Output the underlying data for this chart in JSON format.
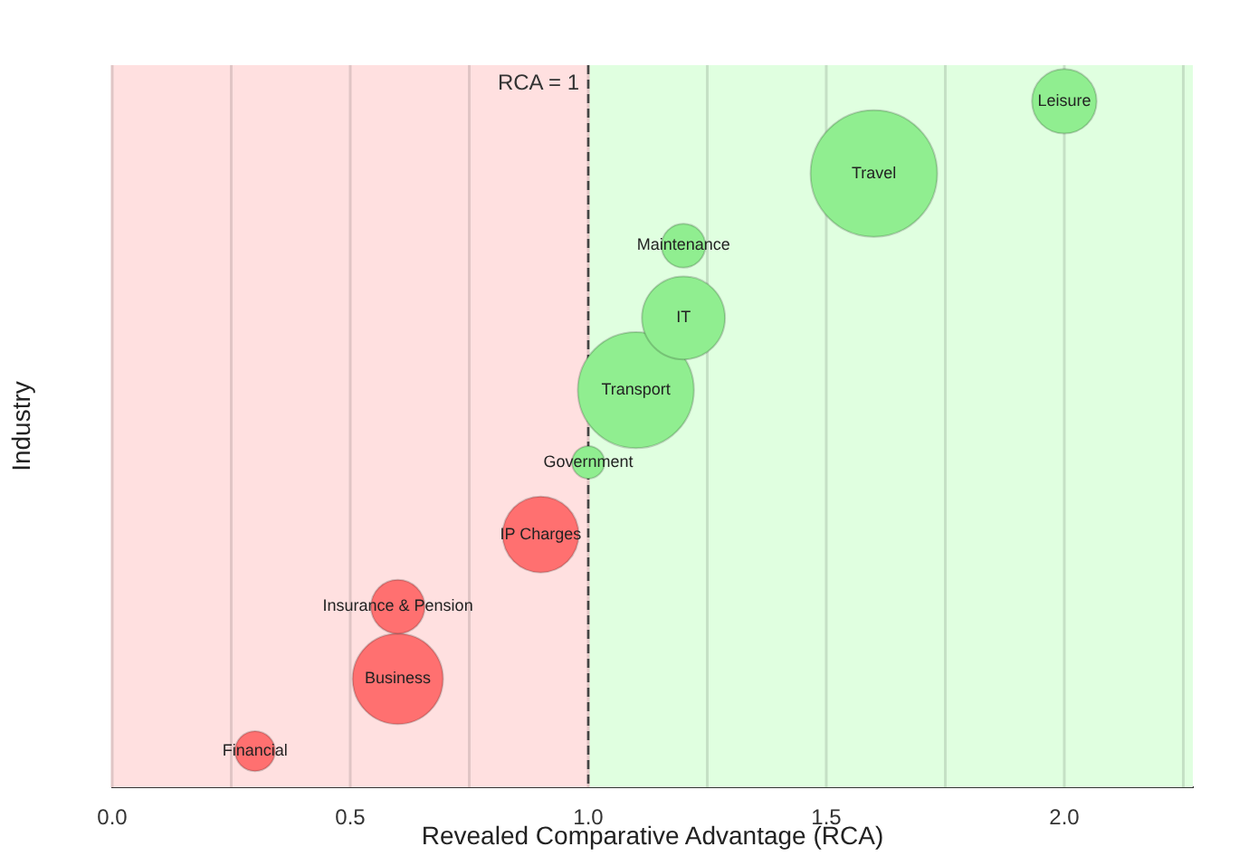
{
  "chart_data": {
    "type": "bubble",
    "orientation": "horizontal",
    "xlabel": "Revealed Comparative Advantage (RCA)",
    "ylabel": "Industry",
    "categories": [
      null,
      null,
      null,
      null,
      null,
      null,
      null,
      null,
      null,
      null
    ],
    "series": [
      {
        "name": "Leisure",
        "color": "#90ee90",
        "values": [
          2.0,
          null,
          null,
          null,
          null,
          null,
          null,
          null,
          null,
          null
        ],
        "sizes": [
          0.26,
          null,
          null,
          null,
          null,
          null,
          null,
          null,
          null,
          null
        ]
      },
      {
        "name": "Travel",
        "color": "#90ee90",
        "values": [
          null,
          1.6,
          null,
          null,
          null,
          null,
          null,
          null,
          null,
          null
        ],
        "sizes": [
          null,
          1,
          null,
          null,
          null,
          null,
          null,
          null,
          null,
          null
        ]
      },
      {
        "name": "Maintenance",
        "color": "#90ee90",
        "values": [
          null,
          null,
          1.2,
          null,
          null,
          null,
          null,
          null,
          null,
          null
        ],
        "sizes": [
          null,
          null,
          0.12,
          null,
          null,
          null,
          null,
          null,
          null,
          null
        ]
      },
      {
        "name": "IT",
        "color": "#90ee90",
        "values": [
          null,
          null,
          null,
          1.2,
          null,
          null,
          null,
          null,
          null,
          null
        ],
        "sizes": [
          null,
          null,
          null,
          0.43,
          null,
          null,
          null,
          null,
          null,
          null
        ]
      },
      {
        "name": "Transport",
        "color": "#90ee90",
        "values": [
          null,
          null,
          null,
          null,
          1.1,
          null,
          null,
          null,
          null,
          null
        ],
        "sizes": [
          null,
          null,
          null,
          null,
          0.84,
          null,
          null,
          null,
          null,
          null
        ]
      },
      {
        "name": "Government",
        "color": "#90ee90",
        "values": [
          null,
          null,
          null,
          null,
          null,
          1.0,
          null,
          null,
          null,
          null
        ],
        "sizes": [
          null,
          null,
          null,
          null,
          null,
          0.066,
          null,
          null,
          null,
          null
        ]
      },
      {
        "name": "IP Charges",
        "color": "#ff7070",
        "values": [
          null,
          null,
          null,
          null,
          null,
          null,
          0.9,
          null,
          null,
          null
        ],
        "sizes": [
          null,
          null,
          null,
          null,
          null,
          null,
          0.36,
          null,
          null,
          null
        ]
      },
      {
        "name": "Insurance & Pension",
        "color": "#ff7070",
        "values": [
          null,
          null,
          null,
          null,
          null,
          null,
          null,
          0.6,
          null,
          null
        ],
        "sizes": [
          null,
          null,
          null,
          null,
          null,
          null,
          null,
          0.18,
          null,
          null
        ]
      },
      {
        "name": "Business",
        "color": "#ff7070",
        "values": [
          null,
          null,
          null,
          null,
          null,
          null,
          null,
          null,
          0.6,
          null
        ],
        "sizes": [
          null,
          null,
          null,
          null,
          null,
          null,
          null,
          null,
          0.51,
          null
        ]
      },
      {
        "name": "Financial",
        "color": "#ff7070",
        "values": [
          null,
          null,
          null,
          null,
          null,
          null,
          null,
          null,
          null,
          0.3
        ],
        "sizes": [
          null,
          null,
          null,
          null,
          null,
          null,
          null,
          null,
          null,
          0.1
        ]
      }
    ],
    "xlim": [
      0,
      2.27
    ],
    "xticks": [
      {
        "value": 0,
        "label": "0.0"
      },
      {
        "value": 0.25,
        "label": null
      },
      {
        "value": 0.5,
        "label": "0.5"
      },
      {
        "value": 0.75,
        "label": null
      },
      {
        "value": 1,
        "label": "1.0"
      },
      {
        "value": 1.25,
        "label": null
      },
      {
        "value": 1.5,
        "label": "1.5"
      },
      {
        "value": 1.75,
        "label": null
      },
      {
        "value": 2,
        "label": "2.0"
      },
      {
        "value": 2.25,
        "label": null
      }
    ],
    "bands": [
      {
        "axis": "x",
        "from": 0,
        "to": 1,
        "color": "#ffe0e0"
      },
      {
        "axis": "x",
        "from": 1,
        "to": 2.27,
        "color": "#e0ffe0"
      }
    ],
    "ref_lines": [
      {
        "axis": "x",
        "value": 1,
        "label": "RCA = 1",
        "color": "#444444",
        "line_style": "dashed"
      }
    ],
    "grid": "x",
    "legend": false,
    "tick_labels": "x"
  }
}
